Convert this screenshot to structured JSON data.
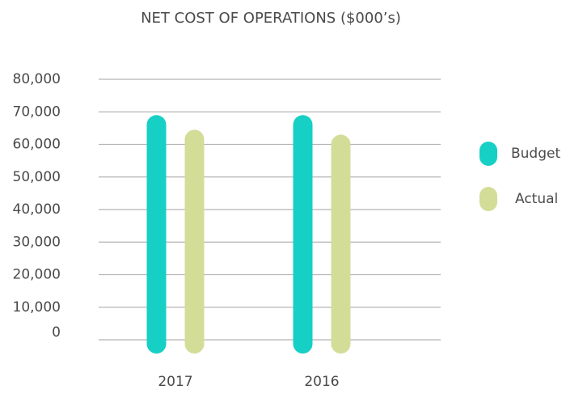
{
  "chart_data": {
    "type": "bar",
    "title": "NET COST OF OPERATIONS ($000’s)",
    "categories": [
      "2017",
      "2016"
    ],
    "series": [
      {
        "name": "Budget",
        "color": "#16cfc5",
        "values": [
          69000,
          69000
        ]
      },
      {
        "name": "Actual",
        "color": "#d3dd98",
        "values": [
          64500,
          63000
        ]
      }
    ],
    "ylim": [
      0,
      80000
    ],
    "yticks": [
      {
        "value": 0,
        "label": "0"
      },
      {
        "value": 10000,
        "label": "10,000"
      },
      {
        "value": 20000,
        "label": "20,000"
      },
      {
        "value": 30000,
        "label": "30,000"
      },
      {
        "value": 40000,
        "label": "40,000"
      },
      {
        "value": 50000,
        "label": "50,000"
      },
      {
        "value": 60000,
        "label": "60,000"
      },
      {
        "value": 70000,
        "label": "70,000"
      },
      {
        "value": 80000,
        "label": "80,000"
      }
    ],
    "grid": true,
    "legend": "right"
  }
}
